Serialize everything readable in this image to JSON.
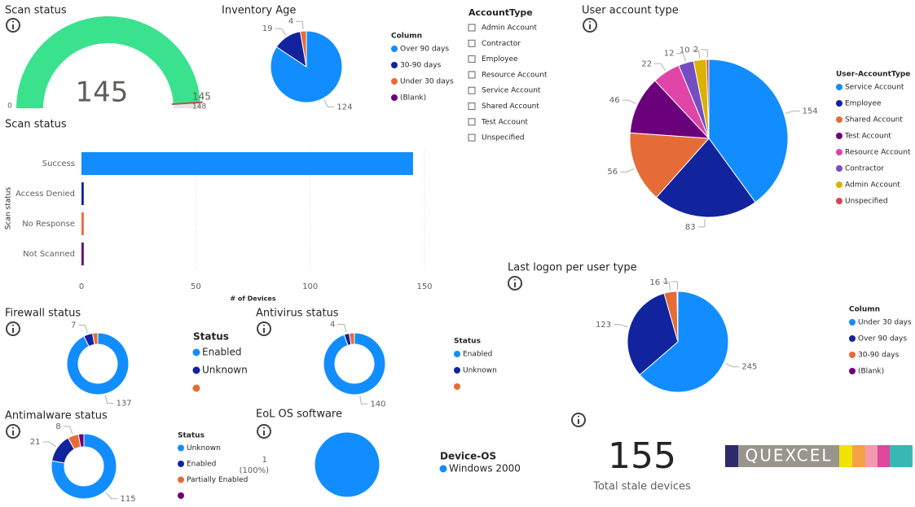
{
  "chart_data": [
    {
      "type": "gauge",
      "title": "Scan status",
      "value": 145,
      "target": 145,
      "min": 0,
      "max": 148,
      "color": "#3be28e",
      "target_color": "#c0504d"
    },
    {
      "type": "pie",
      "title": "Inventory Age",
      "legend_title": "Column",
      "categories": [
        "Over 90 days",
        "30-90 days",
        "Under 30 days",
        "(Blank)"
      ],
      "values": [
        124,
        19,
        4,
        0
      ],
      "colors": [
        "#118dff",
        "#12239e",
        "#e66c37",
        "#6b007b"
      ]
    },
    {
      "type": "pie",
      "title": "User account type",
      "legend_title": "User-AccountType",
      "categories": [
        "Service Account",
        "Employee",
        "Shared Account",
        "Test Account",
        "Resource Account",
        "Contractor",
        "Admin Account",
        "Unspecified"
      ],
      "values": [
        154,
        83,
        56,
        46,
        22,
        12,
        10,
        2
      ],
      "colors": [
        "#118dff",
        "#12239e",
        "#e66c37",
        "#6b007b",
        "#e044a7",
        "#744ec2",
        "#d9b300",
        "#d64550"
      ]
    },
    {
      "type": "bar",
      "title": "Scan status",
      "categories": [
        "Success",
        "Access Denied",
        "No Response",
        "Not Scanned"
      ],
      "values": [
        145,
        1,
        1,
        1
      ],
      "colors": [
        "#118dff",
        "#12239e",
        "#e66c37",
        "#6b007b"
      ],
      "xlim": [
        0,
        150
      ],
      "xticks": [
        0,
        50,
        100,
        150
      ],
      "xlabel": "# of Devices",
      "ylabel": "Scan status",
      "grid": true
    },
    {
      "type": "donut",
      "title": "Firewall status",
      "legend_title": "Status",
      "categories": [
        "Enabled",
        "Unknown",
        null
      ],
      "values": [
        137,
        7,
        4
      ],
      "colors": [
        "#118dff",
        "#12239e",
        "#e66c37"
      ]
    },
    {
      "type": "donut",
      "title": "Antivirus status",
      "legend_title": "Status",
      "categories": [
        "Enabled",
        "Unknown",
        null
      ],
      "values": [
        140,
        4,
        4
      ],
      "colors": [
        "#118dff",
        "#12239e",
        "#e66c37"
      ]
    },
    {
      "type": "donut",
      "title": "Antimalware status",
      "legend_title": "Status",
      "categories": [
        "Unknown",
        "Enabled",
        "Partially Enabled",
        null
      ],
      "values": [
        115,
        21,
        8,
        4
      ],
      "colors": [
        "#118dff",
        "#12239e",
        "#e66c37",
        "#6b007b"
      ]
    },
    {
      "type": "pie",
      "title": "EoL OS software",
      "legend_title": "Device-OS",
      "categories": [
        "Windows 2000"
      ],
      "values": [
        1
      ],
      "percent_labels": [
        {
          "value": 100,
          "label": "(100%)"
        }
      ],
      "colors": [
        "#118dff"
      ]
    },
    {
      "type": "pie",
      "title": "Last logon per user type",
      "legend_title": "Column",
      "categories": [
        "Under 30 days",
        "Over 90 days",
        "30-90 days",
        "(Blank)"
      ],
      "values": [
        245,
        123,
        16,
        1
      ],
      "colors": [
        "#118dff",
        "#12239e",
        "#e66c37",
        "#6b007b"
      ]
    }
  ],
  "slicer": {
    "title": "AccountType",
    "items": [
      "Admin Account",
      "Contractor",
      "Employee",
      "Resource Account",
      "Service Account",
      "Shared Account",
      "Test Account",
      "Unspecified"
    ]
  },
  "card": {
    "value": 155,
    "label": "Total stale devices"
  },
  "logo": {
    "text": "QUEXCEL"
  }
}
